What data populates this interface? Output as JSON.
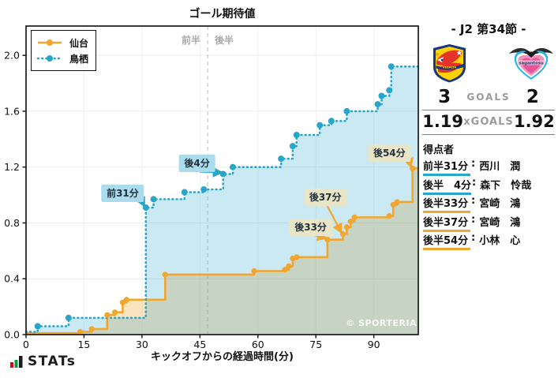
{
  "chart_data": {
    "type": "line",
    "title": "ゴール期待値",
    "xlabel": "キックオフからの経過時間(分)",
    "x_ticks": [
      0,
      15,
      30,
      45,
      60,
      75,
      90
    ],
    "y_tick_labels": [
      "0.0",
      "0.4",
      "0.8",
      "1.2",
      "1.6",
      "2.0"
    ],
    "xlim": [
      0,
      101.5
    ],
    "ylim": [
      0,
      2.21
    ],
    "halftime_x": 47,
    "half_labels": {
      "first": "前半",
      "second": "後半"
    },
    "grid": true,
    "legend_position": "top-left",
    "series": [
      {
        "name": "仙台",
        "style": "solid",
        "points": [
          [
            0,
            0.01
          ],
          [
            14,
            0.02
          ],
          [
            17,
            0.04
          ],
          [
            21,
            0.14
          ],
          [
            23,
            0.16
          ],
          [
            25,
            0.23
          ],
          [
            26,
            0.25
          ],
          [
            36,
            0.43
          ],
          [
            59,
            0.455
          ],
          [
            67,
            0.465
          ],
          [
            68,
            0.49
          ],
          [
            69,
            0.545
          ],
          [
            70,
            0.555
          ],
          [
            78,
            0.68
          ],
          [
            82,
            0.72
          ],
          [
            83,
            0.77
          ],
          [
            84,
            0.81
          ],
          [
            85,
            0.84
          ],
          [
            94,
            0.85
          ],
          [
            95,
            0.93
          ],
          [
            96,
            0.95
          ],
          [
            100,
            1.19
          ]
        ]
      },
      {
        "name": "鳥栖",
        "style": "dotted",
        "points": [
          [
            0,
            0.02
          ],
          [
            3,
            0.06
          ],
          [
            11,
            0.12
          ],
          [
            31,
            0.91
          ],
          [
            33,
            0.97
          ],
          [
            41,
            1.02
          ],
          [
            46,
            1.04
          ],
          [
            51,
            1.15
          ],
          [
            53.5,
            1.2
          ],
          [
            66,
            1.26
          ],
          [
            69,
            1.35
          ],
          [
            70,
            1.43
          ],
          [
            76,
            1.5
          ],
          [
            79,
            1.53
          ],
          [
            83,
            1.6
          ],
          [
            91,
            1.65
          ],
          [
            92,
            1.71
          ],
          [
            94,
            1.75
          ],
          [
            94.5,
            1.92
          ]
        ]
      }
    ],
    "annotations": [
      {
        "text": "前31分",
        "team": "鳥栖",
        "x": 31,
        "y": 0.91
      },
      {
        "text": "後4分",
        "team": "鳥栖",
        "x": 51,
        "y": 1.15
      },
      {
        "text": "後33分",
        "team": "仙台",
        "x": 78,
        "y": 0.68
      },
      {
        "text": "後37分",
        "team": "仙台",
        "x": 82,
        "y": 0.72
      },
      {
        "text": "後54分",
        "team": "仙台",
        "x": 100,
        "y": 1.19
      }
    ]
  },
  "watermark": "© SPORTERIA",
  "footer_logo_text": "STATs",
  "match_panel": {
    "header": "- J2 第34節 -",
    "home_team": {
      "name": "仙台",
      "logo": "vegalta-sendai-crest"
    },
    "away_team": {
      "name": "鳥栖",
      "logo": "sagan-tosu-crest"
    },
    "score": {
      "home": "3",
      "label": "GOALS",
      "away": "2"
    },
    "xgoals": {
      "home": "1.19",
      "label": "xGOALS",
      "away": "1.92"
    },
    "scorers": {
      "heading": "得点者",
      "rows": [
        {
          "time": "前半31分",
          "name": "西川　潤",
          "team": "鳥栖"
        },
        {
          "time": "後半　4分",
          "name": "森下　怜哉",
          "team": "鳥栖"
        },
        {
          "time": "後半33分",
          "name": "宮崎　鴻",
          "team": "仙台"
        },
        {
          "time": "後半37分",
          "name": "宮崎　鴻",
          "team": "仙台"
        },
        {
          "time": "後半54分",
          "name": "小林　心",
          "team": "仙台"
        }
      ]
    }
  },
  "colors": {
    "sendai": "#F0A62F",
    "tosu": "#27A5CB",
    "sendai_label_bg": "#E9E5C7",
    "tosu_label_bg": "#ABDCEE",
    "grid": "#ECECEC",
    "axis": "#1A1A1A",
    "muted_text": "#9A9A9A"
  }
}
